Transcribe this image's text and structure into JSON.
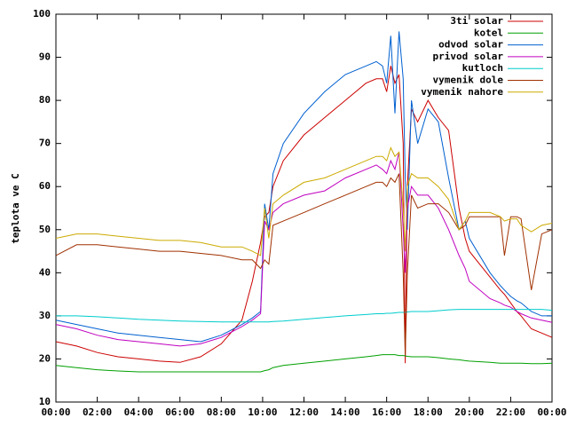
{
  "chart_data": {
    "type": "line",
    "ylabel": "teplota ve C",
    "x": [
      0,
      1,
      2,
      3,
      4,
      5,
      6,
      7,
      8,
      9,
      9.5,
      9.9,
      10.1,
      10.3,
      10.5,
      11,
      12,
      13,
      14,
      15,
      15.5,
      15.8,
      16,
      16.2,
      16.4,
      16.6,
      16.8,
      16.9,
      17.0,
      17.2,
      17.5,
      18,
      18.5,
      19,
      19.5,
      19.8,
      20,
      21,
      21.5,
      21.7,
      22,
      22.3,
      22.5,
      23,
      23.5,
      24
    ],
    "xlim": [
      0,
      24
    ],
    "xticks": [
      {
        "value": 0,
        "label": "00:00"
      },
      {
        "value": 2,
        "label": "02:00"
      },
      {
        "value": 4,
        "label": "04:00"
      },
      {
        "value": 6,
        "label": "06:00"
      },
      {
        "value": 8,
        "label": "08:00"
      },
      {
        "value": 10,
        "label": "10:00"
      },
      {
        "value": 12,
        "label": "12:00"
      },
      {
        "value": 14,
        "label": "14:00"
      },
      {
        "value": 16,
        "label": "16:00"
      },
      {
        "value": 18,
        "label": "18:00"
      },
      {
        "value": 20,
        "label": "20:00"
      },
      {
        "value": 22,
        "label": "22:00"
      },
      {
        "value": 24,
        "label": "00:00"
      }
    ],
    "ylim": [
      10,
      100
    ],
    "yticks": [
      10,
      20,
      30,
      40,
      50,
      60,
      70,
      80,
      90,
      100
    ],
    "grid": false,
    "legend": "top-right",
    "series": [
      {
        "name": "3ti solar",
        "color": "#cc0000",
        "values": [
          24,
          23,
          21.5,
          20.5,
          20,
          19.5,
          19.2,
          20.5,
          23.5,
          29,
          38,
          47,
          53,
          54,
          60,
          66,
          72,
          76,
          80,
          84,
          85,
          85,
          82,
          88,
          84,
          86,
          70,
          19,
          60,
          78,
          75,
          80,
          76,
          73,
          55,
          48,
          45,
          39,
          36,
          35,
          33,
          31,
          30,
          27,
          26,
          25
        ]
      },
      {
        "name": "kotel",
        "color": "#00a000",
        "values": [
          18.5,
          18,
          17.5,
          17.2,
          17,
          17,
          17,
          17,
          17,
          17,
          17,
          17,
          17.3,
          17.5,
          18,
          18.5,
          19,
          19.5,
          20,
          20.5,
          20.8,
          21,
          21,
          21,
          21,
          20.8,
          20.8,
          20.7,
          20.6,
          20.5,
          20.5,
          20.5,
          20.3,
          20,
          19.8,
          19.6,
          19.5,
          19.2,
          19,
          19,
          19,
          19,
          19,
          18.9,
          18.9,
          19
        ]
      },
      {
        "name": "odvod solar",
        "color": "#0060d0",
        "values": [
          29,
          28,
          27,
          26,
          25.5,
          25,
          24.5,
          24,
          25.5,
          28,
          29.5,
          31,
          56,
          50,
          63,
          70,
          77,
          82,
          86,
          88,
          89,
          88,
          84,
          95,
          77,
          96,
          85,
          62,
          50,
          80,
          70,
          78,
          75,
          62,
          50,
          52,
          48,
          40,
          37,
          36,
          34.5,
          33.5,
          33,
          31,
          30,
          30
        ]
      },
      {
        "name": "privod solar",
        "color": "#c000c0",
        "values": [
          28,
          27,
          25.5,
          24.5,
          24,
          23.5,
          23,
          23.5,
          25,
          27.5,
          29,
          30.5,
          52,
          50,
          54,
          56,
          58,
          59,
          62,
          64,
          65,
          64,
          63,
          66,
          64,
          68,
          50,
          40,
          55,
          60,
          58,
          58,
          55,
          50,
          44,
          41,
          38,
          34,
          33,
          32.5,
          32,
          31,
          30.5,
          29.5,
          29,
          28.5
        ]
      },
      {
        "name": "kutloch",
        "color": "#00cccc",
        "values": [
          30,
          30,
          29.8,
          29.5,
          29.2,
          29,
          28.8,
          28.7,
          28.6,
          28.6,
          28.6,
          28.6,
          28.6,
          28.6,
          28.7,
          28.8,
          29.2,
          29.6,
          30,
          30.3,
          30.5,
          30.5,
          30.6,
          30.6,
          30.7,
          30.8,
          30.8,
          30.8,
          30.9,
          31,
          31,
          31,
          31.2,
          31.4,
          31.5,
          31.5,
          31.5,
          31.5,
          31.5,
          31.5,
          31.5,
          31.5,
          31.5,
          31.5,
          31.5,
          31.3
        ]
      },
      {
        "name": "vymenik dole",
        "color": "#a03000",
        "values": [
          44,
          46.5,
          46.5,
          46,
          45.5,
          45,
          45,
          44.5,
          44,
          43,
          43,
          41,
          43,
          42,
          51,
          52,
          54,
          56,
          58,
          60,
          61,
          61,
          60,
          62,
          61,
          63,
          40,
          21,
          40,
          58,
          55,
          56,
          56,
          54,
          50,
          51,
          53,
          53,
          53,
          44,
          53,
          53,
          52.5,
          36,
          49,
          50
        ]
      },
      {
        "name": "vymenik nahore",
        "color": "#ccaa00",
        "values": [
          48,
          49,
          49,
          48.5,
          48,
          47.5,
          47.5,
          47,
          46,
          46,
          45,
          44,
          55,
          48,
          56,
          58,
          61,
          62,
          64,
          66,
          67,
          67,
          66,
          69,
          67,
          68,
          55,
          45,
          60,
          63,
          62,
          62,
          60,
          57,
          50,
          52,
          54,
          54,
          53,
          52,
          52.5,
          52.5,
          51,
          49.5,
          51,
          51.5
        ]
      }
    ]
  }
}
